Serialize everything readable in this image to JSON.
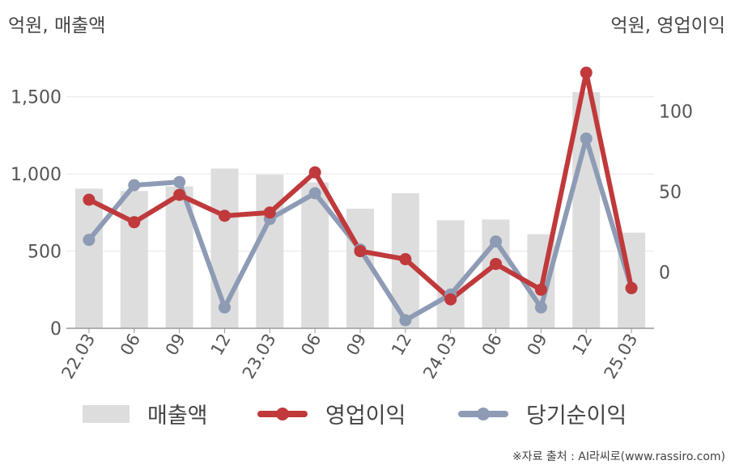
{
  "units": {
    "left": "억원, 매출액",
    "right": "억원, 영업이익"
  },
  "source": "※자료 출처 : AI라씨로(www.rassiro.com)",
  "legend": {
    "bar": "매출액",
    "line1": "영업이익",
    "line2": "당기순이익"
  },
  "colors": {
    "bar": "#dddddd",
    "line1": "#c0393b",
    "line2": "#8e9bb5",
    "grid": "#e6e6e6",
    "axis": "#999999"
  },
  "chart_data": {
    "type": "bar+line",
    "categories": [
      "22.03",
      "06",
      "09",
      "12",
      "23.03",
      "06",
      "09",
      "12",
      "24.03",
      "06",
      "09",
      "12",
      "25.03"
    ],
    "y_left": {
      "ylim": [
        0,
        1750
      ],
      "ticks": [
        0,
        500,
        1000,
        1500
      ],
      "tick_labels": [
        "0",
        "500",
        "1,000",
        "1,500"
      ]
    },
    "y_right": {
      "ylim": [
        -35,
        133
      ],
      "ticks": [
        0,
        50,
        100
      ],
      "tick_labels": [
        "0",
        "50",
        "100"
      ]
    },
    "series": [
      {
        "name": "매출액",
        "type": "bar",
        "axis": "left",
        "values": [
          905,
          890,
          920,
          1035,
          995,
          945,
          775,
          875,
          700,
          705,
          610,
          1530,
          620
        ]
      },
      {
        "name": "영업이익",
        "type": "line",
        "axis": "right",
        "values": [
          45,
          31,
          48,
          35,
          37,
          62,
          13,
          8,
          -17,
          5,
          -11,
          124,
          -10
        ]
      },
      {
        "name": "당기순이익",
        "type": "line",
        "axis": "right",
        "values": [
          20,
          54,
          56,
          -22,
          33,
          49,
          14,
          -30,
          -14,
          19,
          -22,
          83,
          -10
        ]
      }
    ],
    "grid": true,
    "legend_position": "bottom"
  }
}
